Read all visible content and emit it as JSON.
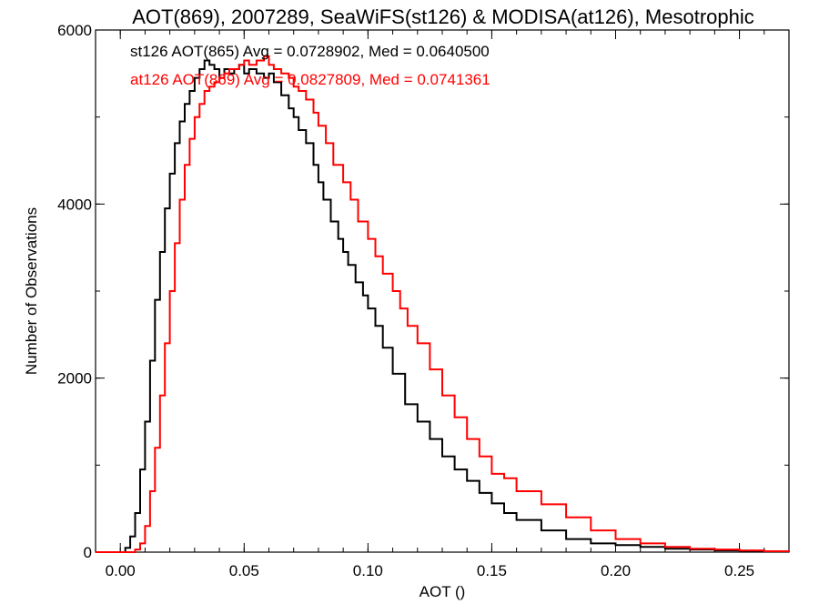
{
  "chart_data": {
    "type": "line",
    "title": "AOT(869), 2007289, SeaWiFS(st126) & MODISA(at126), Mesotrophic",
    "xlabel": "AOT ()",
    "ylabel": "Number of Observations",
    "xlim": [
      -0.01,
      0.27
    ],
    "ylim": [
      0,
      6000
    ],
    "x_ticks": [
      0.0,
      0.05,
      0.1,
      0.15,
      0.2,
      0.25
    ],
    "x_tick_labels": [
      "0.00",
      "0.05",
      "0.10",
      "0.15",
      "0.20",
      "0.25"
    ],
    "y_ticks": [
      0,
      2000,
      4000,
      6000
    ],
    "y_tick_labels": [
      "0",
      "2000",
      "4000",
      "6000"
    ],
    "grid": false,
    "annotations": [
      {
        "text": "st126 AOT(865) Avg = 0.0728902, Med = 0.0640500",
        "color": "#000000"
      },
      {
        "text": "at126 AOT(869) Avg = 0.0827809, Med = 0.0741361",
        "color": "#ff0000"
      }
    ],
    "series": [
      {
        "color": "#000000",
        "x": [
          -0.01,
          0.0,
          0.002,
          0.004,
          0.006,
          0.008,
          0.01,
          0.012,
          0.014,
          0.016,
          0.018,
          0.02,
          0.022,
          0.024,
          0.026,
          0.028,
          0.03,
          0.032,
          0.034,
          0.036,
          0.038,
          0.04,
          0.042,
          0.044,
          0.046,
          0.048,
          0.05,
          0.052,
          0.055,
          0.058,
          0.06,
          0.062,
          0.065,
          0.068,
          0.07,
          0.072,
          0.075,
          0.078,
          0.08,
          0.082,
          0.085,
          0.088,
          0.09,
          0.092,
          0.095,
          0.098,
          0.1,
          0.103,
          0.106,
          0.11,
          0.115,
          0.12,
          0.125,
          0.13,
          0.135,
          0.14,
          0.145,
          0.15,
          0.155,
          0.16,
          0.17,
          0.18,
          0.19,
          0.2,
          0.21,
          0.22,
          0.23,
          0.24,
          0.25,
          0.26,
          0.27
        ],
        "values": [
          0,
          0,
          50,
          180,
          450,
          950,
          1500,
          2200,
          2900,
          3450,
          3950,
          4350,
          4700,
          4950,
          5150,
          5300,
          5450,
          5550,
          5650,
          5600,
          5550,
          5450,
          5550,
          5500,
          5550,
          5600,
          5500,
          5550,
          5500,
          5450,
          5500,
          5400,
          5250,
          5100,
          5000,
          4850,
          4700,
          4450,
          4250,
          4050,
          3800,
          3600,
          3450,
          3300,
          3100,
          2950,
          2800,
          2600,
          2350,
          2050,
          1700,
          1500,
          1300,
          1100,
          950,
          820,
          680,
          560,
          450,
          370,
          250,
          150,
          100,
          80,
          60,
          40,
          30,
          20,
          10,
          5,
          0
        ]
      },
      {
        "color": "#ff0000",
        "x": [
          -0.01,
          0.0,
          0.004,
          0.006,
          0.008,
          0.01,
          0.012,
          0.014,
          0.016,
          0.018,
          0.02,
          0.022,
          0.024,
          0.026,
          0.028,
          0.03,
          0.032,
          0.034,
          0.036,
          0.038,
          0.04,
          0.042,
          0.044,
          0.046,
          0.048,
          0.05,
          0.052,
          0.055,
          0.058,
          0.06,
          0.062,
          0.065,
          0.068,
          0.07,
          0.072,
          0.075,
          0.078,
          0.08,
          0.083,
          0.086,
          0.09,
          0.093,
          0.096,
          0.1,
          0.103,
          0.106,
          0.11,
          0.113,
          0.116,
          0.12,
          0.125,
          0.13,
          0.135,
          0.14,
          0.145,
          0.15,
          0.155,
          0.16,
          0.17,
          0.18,
          0.19,
          0.2,
          0.21,
          0.22,
          0.23,
          0.24,
          0.25,
          0.26,
          0.27
        ],
        "values": [
          0,
          0,
          0,
          30,
          100,
          300,
          700,
          1200,
          1800,
          2400,
          3000,
          3550,
          4050,
          4450,
          4750,
          5000,
          5150,
          5300,
          5350,
          5400,
          5450,
          5500,
          5550,
          5550,
          5600,
          5650,
          5600,
          5650,
          5700,
          5600,
          5550,
          5500,
          5450,
          5350,
          5300,
          5200,
          5050,
          4900,
          4700,
          4450,
          4250,
          4050,
          3800,
          3600,
          3400,
          3200,
          3000,
          2800,
          2600,
          2400,
          2100,
          1800,
          1550,
          1300,
          1100,
          900,
          850,
          700,
          550,
          400,
          250,
          150,
          100,
          60,
          40,
          30,
          20,
          10,
          0
        ]
      }
    ]
  }
}
